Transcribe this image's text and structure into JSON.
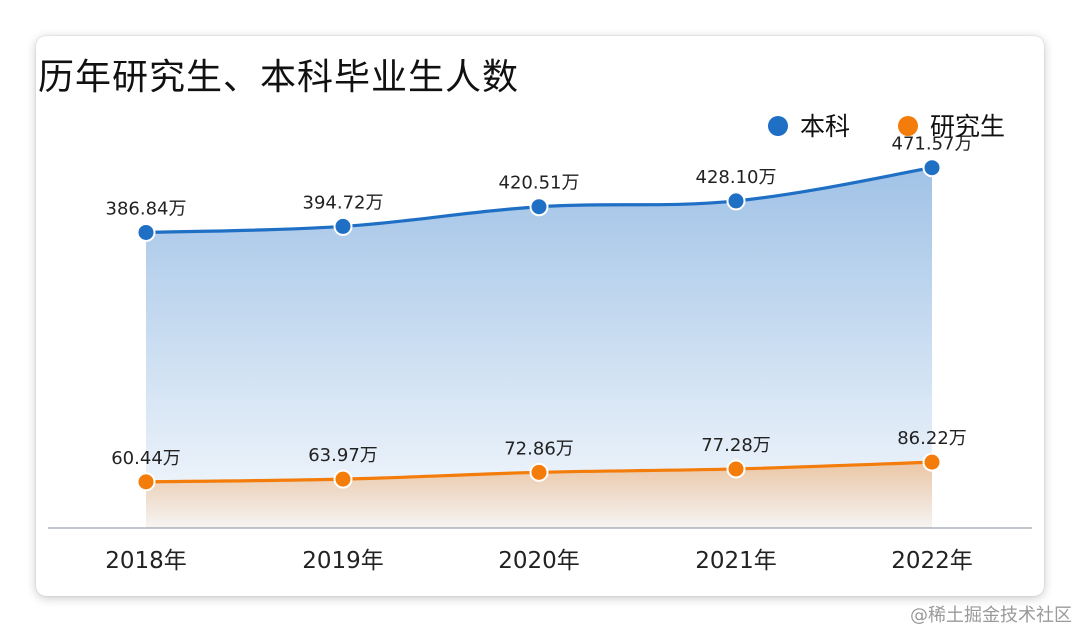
{
  "chart_data": {
    "type": "area",
    "title": "历年研究生、本科毕业生人数",
    "categories": [
      "2018年",
      "2019年",
      "2020年",
      "2021年",
      "2022年"
    ],
    "series": [
      {
        "name": "本科",
        "values": [
          386.84,
          394.72,
          420.51,
          428.1,
          471.57
        ],
        "labels": [
          "386.84万",
          "394.72万",
          "420.51万",
          "428.10万",
          "471.57万"
        ],
        "color": "#1f6fc5"
      },
      {
        "name": "研究生",
        "values": [
          60.44,
          63.97,
          72.86,
          77.28,
          86.22
        ],
        "labels": [
          "60.44万",
          "63.97万",
          "72.86万",
          "77.28万",
          "86.22万"
        ],
        "color": "#f47c0b"
      }
    ],
    "ylim": [
      0,
      500
    ],
    "grid": false,
    "legend": "top-right",
    "xlabel": "",
    "ylabel": ""
  },
  "watermark": "@稀土掘金技术社区"
}
